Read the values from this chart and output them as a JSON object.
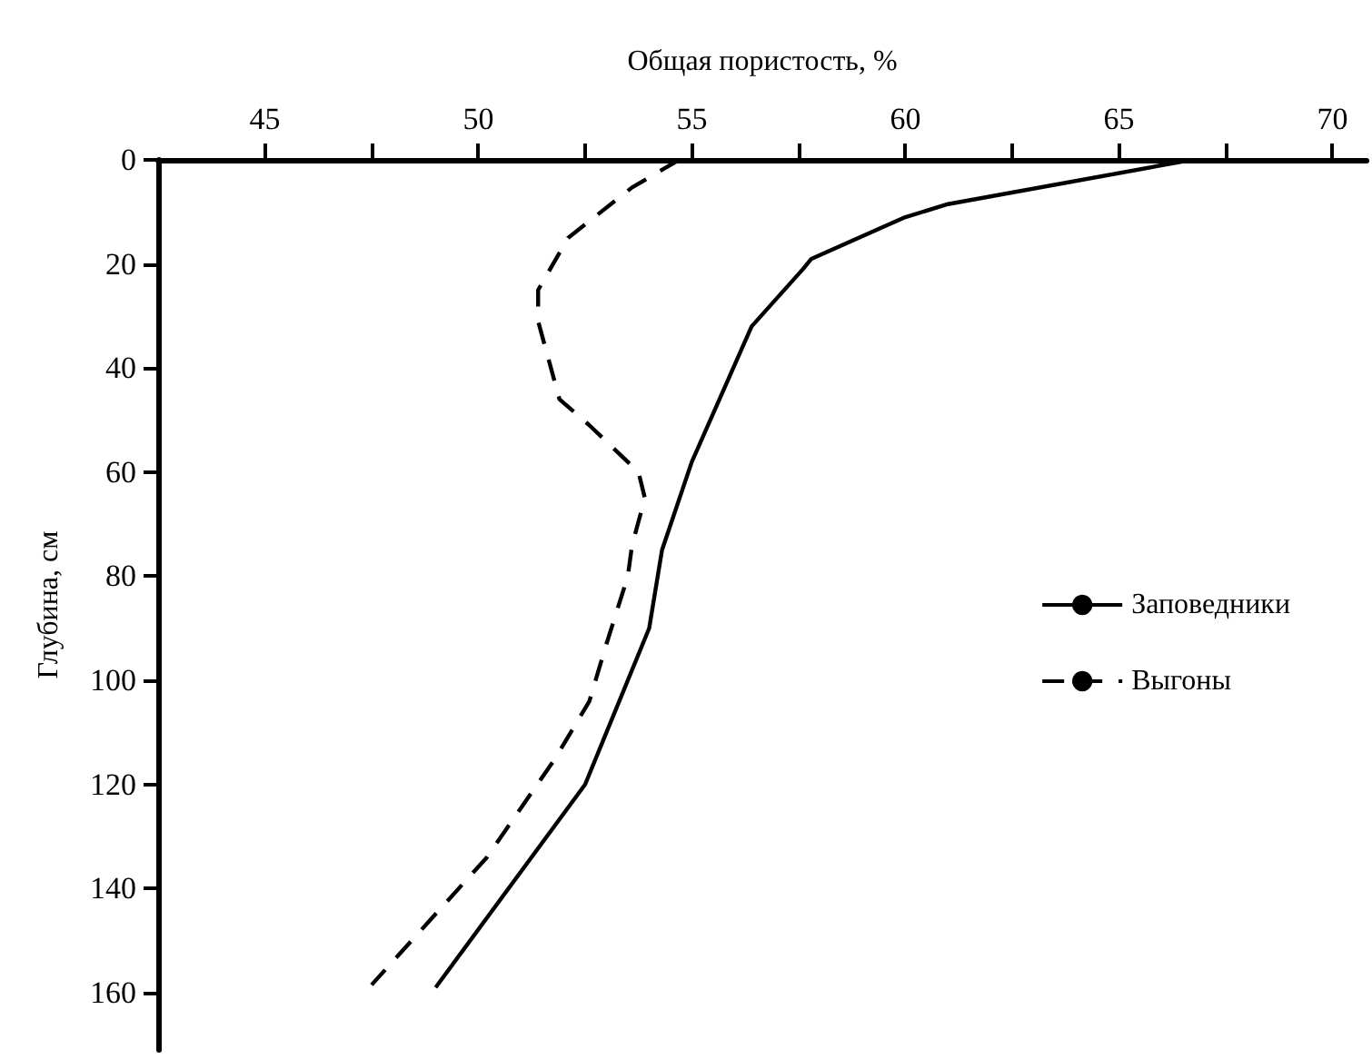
{
  "chart_data": {
    "type": "line",
    "xlabel": "Общая пористость, %",
    "ylabel": "Глубина, см",
    "xlim": [
      42.5,
      70.8
    ],
    "xticks": [
      45,
      {
        "value": 47.5,
        "label": null
      },
      50,
      {
        "value": 52.5,
        "label": null
      },
      55,
      {
        "value": 57.5,
        "label": null
      },
      60,
      {
        "value": 62.5,
        "label": null
      },
      65,
      {
        "value": 67.5,
        "label": null
      },
      70
    ],
    "ylim": [
      171,
      0
    ],
    "yticks": [
      0,
      20,
      40,
      60,
      80,
      100,
      120,
      140,
      160
    ],
    "grid": false,
    "legend": "right",
    "marker": "none",
    "series": [
      {
        "name": "Заповедники",
        "color": "#000000",
        "line_style": "solid",
        "x": [
          66.7,
          61,
          60,
          57.8,
          57.6,
          56.4,
          55,
          54.3,
          54,
          53,
          52.5,
          49
        ],
        "values": [
          0,
          8.5,
          11,
          19,
          21,
          32,
          58,
          75,
          90,
          110,
          120,
          159
        ]
      },
      {
        "name": "Выгоны",
        "color": "#000000",
        "line_style": "dashed",
        "x": [
          54.7,
          53.6,
          52.1,
          51.4,
          51.4,
          51.9,
          52.6,
          53.75,
          53.9,
          53.6,
          53.5,
          53,
          52.6,
          51.8,
          50.2,
          47.5
        ],
        "values": [
          0,
          5.3,
          15,
          25,
          31,
          46,
          51,
          60,
          65,
          74,
          80,
          93,
          104,
          115,
          134,
          158.5
        ]
      }
    ]
  }
}
